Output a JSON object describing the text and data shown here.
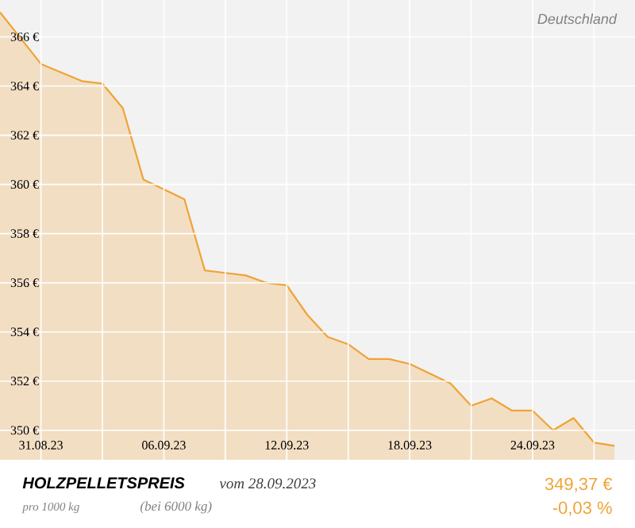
{
  "chart_data": {
    "type": "area",
    "title": "HOLZPELLETSPREIS",
    "subtitle": "vom 28.09.2023",
    "annotations": [
      "Deutschland",
      "pro 1000 kg",
      "(bei 6000 kg)",
      "349,37 €",
      "-0,03 %"
    ],
    "x": [
      "2023-08-29",
      "2023-08-31",
      "2023-09-02",
      "2023-09-03",
      "2023-09-04",
      "2023-09-05",
      "2023-09-07",
      "2023-09-08",
      "2023-09-09",
      "2023-09-10",
      "2023-09-11",
      "2023-09-12",
      "2023-09-13",
      "2023-09-14",
      "2023-09-15",
      "2023-09-16",
      "2023-09-17",
      "2023-09-18",
      "2023-09-19",
      "2023-09-20",
      "2023-09-21",
      "2023-09-22",
      "2023-09-23",
      "2023-09-24",
      "2023-09-25",
      "2023-09-26",
      "2023-09-27",
      "2023-09-28"
    ],
    "values": [
      367.0,
      364.9,
      364.2,
      364.1,
      363.1,
      360.2,
      359.4,
      356.5,
      356.4,
      356.3,
      356.0,
      355.9,
      354.7,
      353.8,
      353.5,
      352.9,
      352.9,
      352.7,
      352.3,
      351.9,
      351.0,
      351.3,
      350.8,
      350.8,
      350.0,
      350.5,
      349.5,
      349.37
    ],
    "color": "#f0a336",
    "xlim": [
      "2023-08-29",
      "2023-09-29"
    ],
    "ylim": [
      348.8,
      367.5
    ],
    "xticks": [
      {
        "value": "2023-08-31",
        "label": "31.08.23"
      },
      {
        "value": "2023-09-03",
        "label": null
      },
      {
        "value": "2023-09-06",
        "label": "06.09.23"
      },
      {
        "value": "2023-09-09",
        "label": null
      },
      {
        "value": "2023-09-12",
        "label": "12.09.23"
      },
      {
        "value": "2023-09-15",
        "label": null
      },
      {
        "value": "2023-09-18",
        "label": "18.09.23"
      },
      {
        "value": "2023-09-21",
        "label": null
      },
      {
        "value": "2023-09-24",
        "label": "24.09.23"
      },
      {
        "value": "2023-09-27",
        "label": null
      }
    ],
    "yticks": [
      {
        "value": 350,
        "label": "350 €"
      },
      {
        "value": 352,
        "label": "352 €"
      },
      {
        "value": 354,
        "label": "354 €"
      },
      {
        "value": 356,
        "label": "356 €"
      },
      {
        "value": 358,
        "label": "358 €"
      },
      {
        "value": 360,
        "label": "360 €"
      },
      {
        "value": 362,
        "label": "362 €"
      },
      {
        "value": 364,
        "label": "364 €"
      },
      {
        "value": 366,
        "label": "366 €"
      }
    ],
    "grid": true
  }
}
